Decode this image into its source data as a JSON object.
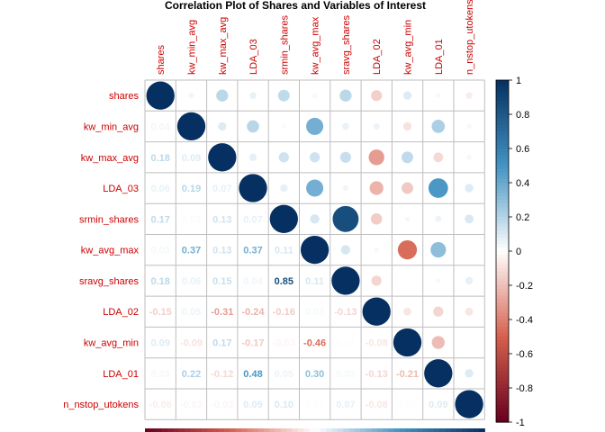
{
  "chart_data": {
    "type": "heatmap",
    "title": "Correlation Plot of Shares and Variables of Interest",
    "variables": [
      "shares",
      "kw_min_avg",
      "kw_max_avg",
      "LDA_03",
      "srmin_shares",
      "kw_avg_max",
      "sravg_shares",
      "LDA_02",
      "kw_avg_min",
      "LDA_01",
      "n_nstop_utokens"
    ],
    "matrix": [
      [
        1.0,
        0.04,
        0.18,
        0.06,
        0.17,
        0.03,
        0.18,
        -0.15,
        0.09,
        0.03,
        -0.06
      ],
      [
        0.04,
        1.0,
        0.09,
        0.19,
        0.02,
        0.37,
        0.06,
        0.05,
        -0.09,
        0.22,
        -0.03
      ],
      [
        0.18,
        0.09,
        1.0,
        0.07,
        0.13,
        0.13,
        0.15,
        -0.31,
        0.17,
        -0.12,
        -0.03
      ],
      [
        0.06,
        0.19,
        0.07,
        1.0,
        0.07,
        0.37,
        0.04,
        -0.24,
        -0.17,
        0.48,
        0.09
      ],
      [
        0.17,
        0.02,
        0.13,
        0.07,
        1.0,
        0.11,
        0.85,
        -0.16,
        -0.03,
        0.05,
        0.1
      ],
      [
        0.03,
        0.37,
        0.13,
        0.37,
        0.11,
        1.0,
        0.11,
        0.03,
        -0.46,
        0.3,
        0.01
      ],
      [
        0.18,
        0.06,
        0.15,
        0.04,
        0.85,
        0.11,
        1.0,
        -0.13,
        0.01,
        0.03,
        0.07
      ],
      [
        -0.15,
        0.05,
        -0.31,
        -0.24,
        -0.16,
        0.03,
        -0.13,
        1.0,
        -0.08,
        -0.13,
        -0.08
      ],
      [
        0.09,
        -0.09,
        0.17,
        -0.17,
        -0.03,
        -0.46,
        0.01,
        -0.08,
        1.0,
        -0.21,
        0.01
      ],
      [
        0.03,
        0.22,
        -0.12,
        0.48,
        0.05,
        0.3,
        0.03,
        -0.13,
        -0.21,
        1.0,
        0.09
      ],
      [
        -0.06,
        -0.03,
        -0.03,
        0.09,
        0.1,
        0.01,
        0.07,
        -0.08,
        0.01,
        0.09,
        1.0
      ]
    ],
    "legend_ticks": [
      1,
      0.8,
      0.6,
      0.4,
      0.2,
      0,
      -0.2,
      -0.4,
      -0.6,
      -0.8,
      -1
    ],
    "legend_ticks_text": [
      "1",
      "0.8",
      "0.6",
      "0.4",
      "0.2",
      "0",
      "-0.2",
      "-0.4",
      "-0.6",
      "-0.8",
      "-1"
    ],
    "scale_range": [
      -1,
      1
    ],
    "upper_triangle": "circles",
    "lower_triangle": "numbers",
    "legend_placement": "right",
    "grid": true,
    "colors": {
      "negative_max": "#67001F",
      "negative_mid": "#D6604D",
      "neutral": "#FFFFFF",
      "positive_mid": "#4393C3",
      "positive_max": "#053061",
      "label": "#CC0000",
      "grid": "#BEBEBE"
    }
  }
}
